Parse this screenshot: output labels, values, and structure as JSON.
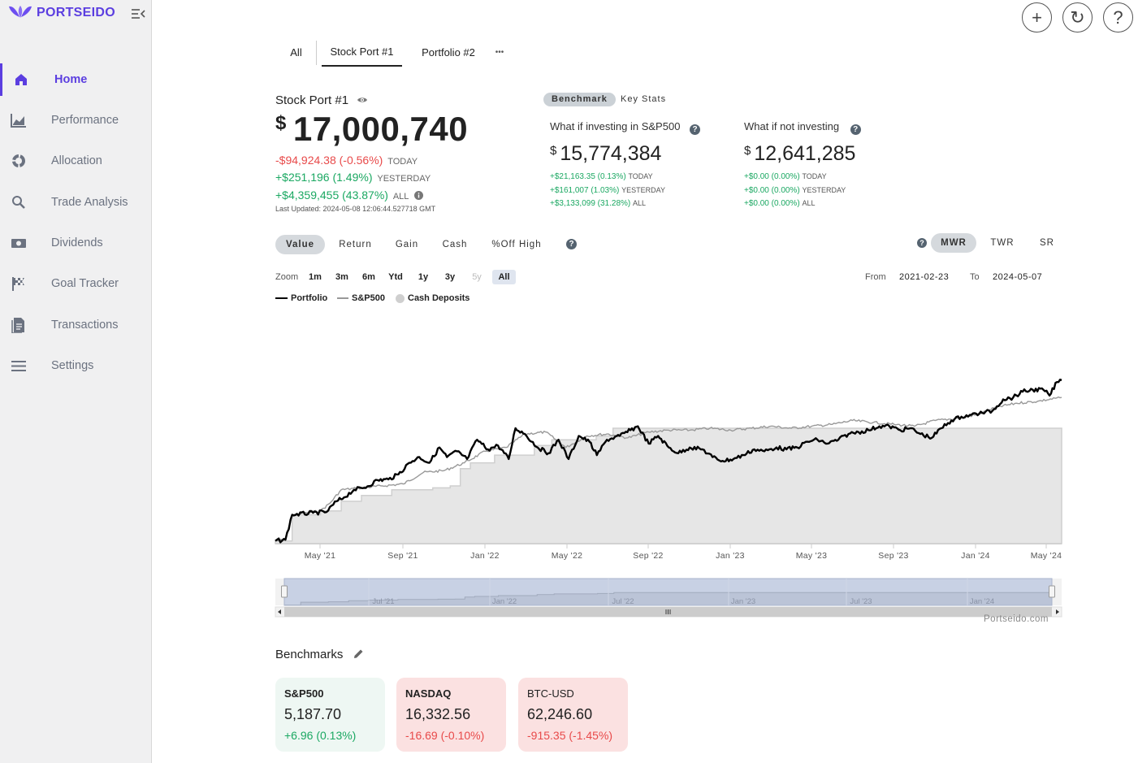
{
  "brand": {
    "name": "PORTSEIDO"
  },
  "sidebar": {
    "items": [
      {
        "label": "Home",
        "icon": "home-icon",
        "active": true
      },
      {
        "label": "Performance",
        "icon": "chart-icon"
      },
      {
        "label": "Allocation",
        "icon": "pie-icon"
      },
      {
        "label": "Trade Analysis",
        "icon": "search-icon"
      },
      {
        "label": "Dividends",
        "icon": "money-icon"
      },
      {
        "label": "Goal Tracker",
        "icon": "flag-icon"
      },
      {
        "label": "Transactions",
        "icon": "document-icon"
      },
      {
        "label": "Settings",
        "icon": "menu-icon"
      }
    ]
  },
  "header_buttons": {
    "add": "+",
    "refresh": "↻",
    "help": "?"
  },
  "tabs": [
    "All",
    "Stock Port #1",
    "Portfolio #2",
    "•••"
  ],
  "portfolio": {
    "name": "Stock Port #1",
    "currency": "$",
    "value": "17,000,740",
    "today": "-$94,924.38 (-0.56%)",
    "today_tag": "TODAY",
    "yesterday": "+$251,196 (1.49%)",
    "yesterday_tag": "YESTERDAY",
    "all": "+$4,359,455 (43.87%)",
    "all_tag": "ALL",
    "last_updated": "Last Updated: 2024-05-08 12:06:44.527718 GMT"
  },
  "benchmark_tabs": {
    "benchmark": "Benchmark",
    "key_stats": "Key Stats"
  },
  "what_if_sp": {
    "title": "What if investing in S&P500",
    "currency": "$",
    "value": "15,774,384",
    "today": "+$21,163.35 (0.13%)",
    "yesterday": "+$161,007 (1.03%)",
    "all": "+$3,133,099 (31.28%)"
  },
  "what_if_not": {
    "title": "What if not investing",
    "currency": "$",
    "value": "12,641,285",
    "today": "+$0.00 (0.00%)",
    "yesterday": "+$0.00 (0.00%)",
    "all": "+$0.00 (0.00%)"
  },
  "tags": {
    "today": "TODAY",
    "yesterday": "YESTERDAY",
    "all": "ALL"
  },
  "view_tabs": [
    "Value",
    "Return",
    "Gain",
    "Cash",
    "%Off High"
  ],
  "method_tabs": [
    "MWR",
    "TWR",
    "SR"
  ],
  "zoom": {
    "label": "Zoom",
    "options": [
      "1m",
      "3m",
      "6m",
      "Ytd",
      "1y",
      "3y",
      "5y",
      "All"
    ],
    "selected": "All"
  },
  "range": {
    "from_label": "From",
    "from": "2021-02-23",
    "to_label": "To",
    "to": "2024-05-07"
  },
  "chart_data": {
    "type": "line",
    "legend": [
      "Portfolio",
      "S&P500",
      "Cash Deposits"
    ],
    "x_ticks": [
      "May '21",
      "Sep '21",
      "Jan '22",
      "May '22",
      "Sep '22",
      "Jan '23",
      "May '23",
      "Sep '23",
      "Jan '24",
      "May '24"
    ],
    "navigator_ticks": [
      "Jul '21",
      "Jan '22",
      "Jul '22",
      "Jan '23",
      "Jul '23",
      "Jan '24"
    ],
    "credit": "Portseido.com",
    "x_start": "2021-02-23",
    "x_end": "2024-05-07",
    "y_range": [
      11500000,
      17500000
    ],
    "series": [
      {
        "name": "Portfolio",
        "color": "#000000",
        "dates": [
          "2021-02-23",
          "2021-03-10",
          "2021-03-20",
          "2021-04-20",
          "2021-05-10",
          "2021-05-25",
          "2021-06-05",
          "2021-06-20",
          "2021-07-05",
          "2021-07-25",
          "2021-08-10",
          "2021-08-25",
          "2021-09-10",
          "2021-09-25",
          "2021-10-10",
          "2021-10-25",
          "2021-11-05",
          "2021-11-20",
          "2021-12-05",
          "2021-12-20",
          "2022-01-05",
          "2022-01-20",
          "2022-02-05",
          "2022-02-15",
          "2022-03-01",
          "2022-03-20",
          "2022-04-05",
          "2022-04-20",
          "2022-05-05",
          "2022-05-20",
          "2022-06-05",
          "2022-06-16",
          "2022-07-01",
          "2022-07-20",
          "2022-08-05",
          "2022-08-16",
          "2022-09-01",
          "2022-09-15",
          "2022-10-01",
          "2022-10-15",
          "2022-11-01",
          "2022-11-20",
          "2022-12-05",
          "2022-12-20",
          "2023-01-05",
          "2023-01-20",
          "2023-02-05",
          "2023-02-20",
          "2023-03-10",
          "2023-03-25",
          "2023-04-10",
          "2023-04-25",
          "2023-05-10",
          "2023-05-25",
          "2023-06-10",
          "2023-06-25",
          "2023-07-10",
          "2023-07-25",
          "2023-08-10",
          "2023-08-25",
          "2023-09-10",
          "2023-09-25",
          "2023-10-10",
          "2023-10-27",
          "2023-11-10",
          "2023-11-25",
          "2023-12-10",
          "2023-12-25",
          "2024-01-10",
          "2024-01-25",
          "2024-02-10",
          "2024-02-25",
          "2024-03-10",
          "2024-03-25",
          "2024-04-10",
          "2024-04-19",
          "2024-04-30",
          "2024-05-07"
        ],
        "values": [
          11570000,
          11600000,
          12250000,
          12300000,
          12320000,
          12600000,
          12700000,
          12900000,
          12950000,
          13150000,
          13170000,
          13300000,
          13600000,
          13750000,
          13600000,
          14000000,
          13750000,
          13900000,
          13700000,
          14200000,
          13950000,
          14050000,
          13700000,
          14500000,
          14350000,
          14000000,
          13850000,
          14200000,
          13700000,
          14300000,
          14150000,
          13800000,
          14200000,
          14300000,
          14450000,
          14550000,
          14100000,
          14300000,
          14000000,
          13850000,
          14000000,
          13950000,
          13750000,
          13650000,
          13700000,
          13800000,
          13950000,
          13900000,
          14000000,
          13950000,
          14000000,
          14150000,
          14200000,
          14100000,
          14200000,
          14350000,
          14400000,
          14450000,
          14550000,
          14550000,
          14450000,
          14500000,
          14350000,
          14250000,
          14500000,
          14700000,
          14800000,
          14850000,
          14900000,
          14950000,
          15250000,
          15300000,
          15450000,
          15500000,
          15500000,
          15350000,
          15700000,
          15750000
        ]
      },
      {
        "name": "S&P500",
        "color": "#999999",
        "dates": [
          "2021-02-23",
          "2021-03-10",
          "2021-03-20",
          "2021-05-01",
          "2021-05-15",
          "2021-06-01",
          "2021-07-01",
          "2021-08-01",
          "2021-09-01",
          "2021-10-01",
          "2021-11-01",
          "2021-12-01",
          "2022-01-01",
          "2022-02-01",
          "2022-03-01",
          "2022-04-01",
          "2022-05-01",
          "2022-06-01",
          "2022-07-01",
          "2022-08-01",
          "2022-09-01",
          "2022-10-01",
          "2022-11-01",
          "2022-12-01",
          "2023-01-01",
          "2023-02-01",
          "2023-03-01",
          "2023-04-01",
          "2023-05-01",
          "2023-06-01",
          "2023-07-01",
          "2023-08-01",
          "2023-09-01",
          "2023-10-01",
          "2023-11-01",
          "2023-12-01",
          "2024-01-01",
          "2024-02-01",
          "2024-03-01",
          "2024-04-01",
          "2024-05-07"
        ],
        "values": [
          11570000,
          11600000,
          12250000,
          12350000,
          12550000,
          12900000,
          12950000,
          13000000,
          13050000,
          13350000,
          13400000,
          13600000,
          13900000,
          14000000,
          14350000,
          14400000,
          14000000,
          14300000,
          14350000,
          14250000,
          14400000,
          14450000,
          14450000,
          14500000,
          14450000,
          14500000,
          14550000,
          14500000,
          14550000,
          14600000,
          14700000,
          14650000,
          14600000,
          14550000,
          14700000,
          14750000,
          14850000,
          15050000,
          15150000,
          15200000,
          15300000
        ]
      },
      {
        "name": "Cash Deposits",
        "color": "#cfcfcf",
        "dates": [
          "2021-02-23",
          "2021-03-20",
          "2021-05-01",
          "2021-06-01",
          "2021-07-01",
          "2021-08-15",
          "2021-09-20",
          "2021-10-15",
          "2021-11-10",
          "2021-11-25",
          "2021-12-10",
          "2022-01-15",
          "2022-03-15",
          "2022-04-10",
          "2022-05-15",
          "2022-06-15",
          "2022-07-10",
          "2023-12-01",
          "2024-05-07"
        ],
        "values": [
          11570000,
          12250000,
          12350000,
          12600000,
          12750000,
          12900000,
          12900000,
          12950000,
          13000000,
          13450000,
          13600000,
          13800000,
          14050000,
          14200000,
          14200000,
          14300000,
          14500000,
          14500000,
          14500000
        ]
      }
    ]
  },
  "benchmarks": {
    "title": "Benchmarks",
    "cards": [
      {
        "name": "S&P500",
        "value": "5,187.70",
        "change": "+6.96 (0.13%)",
        "bg": "#eef7f3",
        "change_color": "#1ba862",
        "bold": true
      },
      {
        "name": "NASDAQ",
        "value": "16,332.56",
        "change": "-16.69 (-0.10%)",
        "bg": "#fbe1e1",
        "change_color": "#e84a4a",
        "bold": true
      },
      {
        "name": "BTC-USD",
        "value": "62,246.60",
        "change": "-915.35 (-1.45%)",
        "bg": "#fbe1e1",
        "change_color": "#e84a4a",
        "bold": false
      }
    ]
  }
}
